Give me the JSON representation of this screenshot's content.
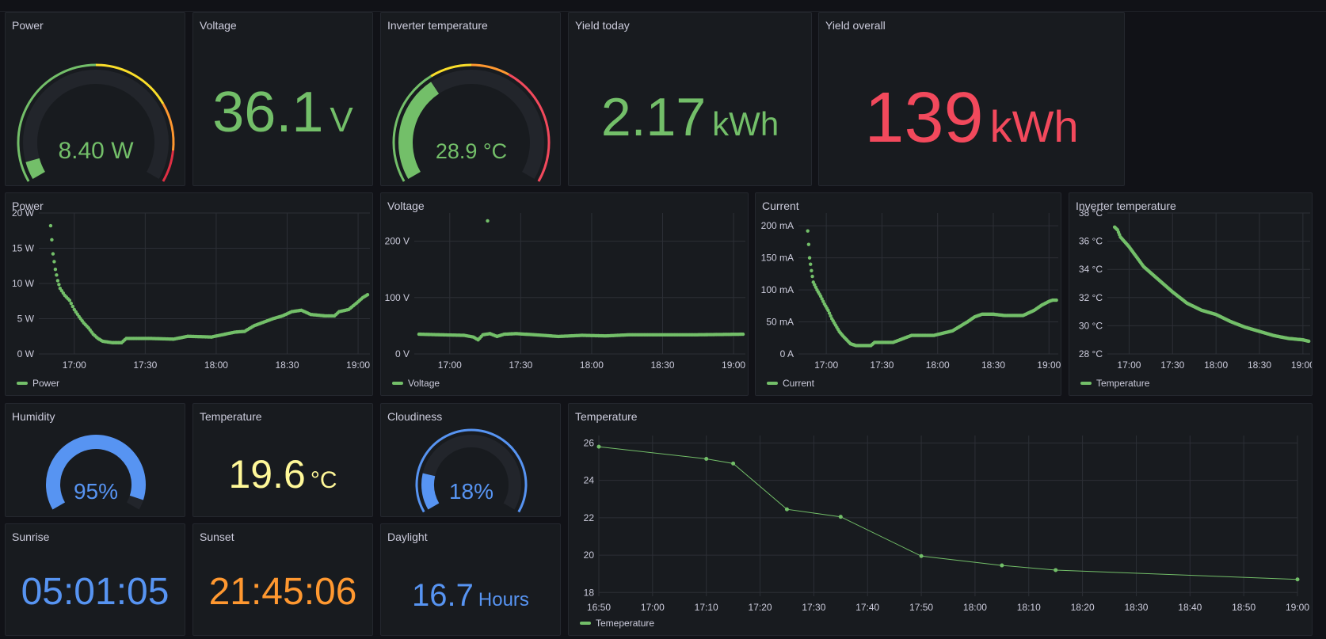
{
  "colors": {
    "green": "#73bf69",
    "yellow": "#fade2a",
    "orange": "#ff9830",
    "red": "#f2495c",
    "blue": "#5794f2",
    "lightyellow": "#fff899",
    "track": "#22252b"
  },
  "stats": {
    "power_gauge": {
      "title": "Power",
      "value": "8.40 W",
      "fraction": 0.06
    },
    "voltage": {
      "title": "Voltage",
      "value": "36.1",
      "unit": "V"
    },
    "inv_temp_gauge": {
      "title": "Inverter temperature",
      "value": "28.9 °C",
      "fraction": 0.36
    },
    "yield_today": {
      "title": "Yield today",
      "value": "2.17",
      "unit": "kWh"
    },
    "yield_overall": {
      "title": "Yield overall",
      "value": "139",
      "unit": "kWh"
    },
    "humidity": {
      "title": "Humidity",
      "value": "95%",
      "fraction": 0.95
    },
    "temperature": {
      "title": "Temperature",
      "value": "19.6",
      "unit": "°C"
    },
    "cloudiness": {
      "title": "Cloudiness",
      "value": "18%",
      "fraction": 0.18
    },
    "sunrise": {
      "title": "Sunrise",
      "value": "05:01:05"
    },
    "sunset": {
      "title": "Sunset",
      "value": "21:45:06"
    },
    "daylight": {
      "title": "Daylight",
      "value": "16.7",
      "unit": "Hours"
    }
  },
  "chart_data": [
    {
      "id": "power",
      "type": "scatter",
      "title": "Power",
      "legend": "Power",
      "color": "#73bf69",
      "xrange": [
        1005,
        1145
      ],
      "xticks": [
        1020,
        1050,
        1080,
        1110,
        1140
      ],
      "xtick_labels": [
        "17:00",
        "17:30",
        "18:00",
        "18:30",
        "19:00"
      ],
      "ylim": [
        0,
        20
      ],
      "yticks": [
        0,
        5,
        10,
        15,
        20
      ],
      "ytick_labels": [
        "0 W",
        "5 W",
        "10 W",
        "15 W",
        "20 W"
      ],
      "anchors": [
        [
          1010,
          18.2
        ],
        [
          1011,
          14.2
        ],
        [
          1012,
          12
        ],
        [
          1013,
          10.4
        ],
        [
          1014,
          9.3
        ],
        [
          1016,
          8.3
        ],
        [
          1018,
          7.6
        ],
        [
          1020,
          6.3
        ],
        [
          1022,
          5.3
        ],
        [
          1024,
          4.4
        ],
        [
          1026,
          3.7
        ],
        [
          1028,
          2.8
        ],
        [
          1030,
          2.2
        ],
        [
          1032,
          1.8
        ],
        [
          1036,
          1.6
        ],
        [
          1040,
          1.6
        ],
        [
          1042,
          2.2
        ],
        [
          1052,
          2.2
        ],
        [
          1062,
          2.1
        ],
        [
          1068,
          2.5
        ],
        [
          1078,
          2.4
        ],
        [
          1088,
          3.1
        ],
        [
          1092,
          3.2
        ],
        [
          1096,
          4
        ],
        [
          1104,
          5
        ],
        [
          1108,
          5.4
        ],
        [
          1112,
          6
        ],
        [
          1116,
          6.2
        ],
        [
          1120,
          5.6
        ],
        [
          1126,
          5.4
        ],
        [
          1130,
          5.4
        ],
        [
          1132,
          6
        ],
        [
          1136,
          6.3
        ],
        [
          1140,
          7.4
        ],
        [
          1142,
          8
        ],
        [
          1144,
          8.4
        ]
      ]
    },
    {
      "id": "voltage",
      "type": "scatter",
      "title": "Voltage",
      "legend": "Voltage",
      "color": "#73bf69",
      "xrange": [
        1005,
        1145
      ],
      "xticks": [
        1020,
        1050,
        1080,
        1110,
        1140
      ],
      "xtick_labels": [
        "17:00",
        "17:30",
        "18:00",
        "18:30",
        "19:00"
      ],
      "ylim": [
        0,
        250
      ],
      "yticks": [
        0,
        100,
        200
      ],
      "ytick_labels": [
        "0 V",
        "100 V",
        "200 V"
      ],
      "anchors": [
        [
          1007,
          35
        ],
        [
          1016,
          34
        ],
        [
          1026,
          33
        ],
        [
          1030,
          30
        ],
        [
          1032,
          25
        ],
        [
          1034,
          34
        ],
        [
          1037,
          36
        ],
        [
          1040,
          31
        ],
        [
          1043,
          35
        ],
        [
          1048,
          36
        ],
        [
          1056,
          34
        ],
        [
          1066,
          31
        ],
        [
          1076,
          33
        ],
        [
          1086,
          32
        ],
        [
          1096,
          34
        ],
        [
          1110,
          34
        ],
        [
          1124,
          34
        ],
        [
          1144,
          35
        ]
      ],
      "outliers": [
        [
          1036,
          236
        ]
      ]
    },
    {
      "id": "current",
      "type": "scatter",
      "title": "Current",
      "legend": "Current",
      "color": "#73bf69",
      "xrange": [
        1005,
        1145
      ],
      "xticks": [
        1020,
        1050,
        1080,
        1110,
        1140
      ],
      "xtick_labels": [
        "17:00",
        "17:30",
        "18:00",
        "18:30",
        "19:00"
      ],
      "ylim": [
        0,
        220
      ],
      "yticks": [
        0,
        50,
        100,
        150,
        200
      ],
      "ytick_labels": [
        "0 A",
        "50 mA",
        "100 mA",
        "150 mA",
        "200 mA"
      ],
      "anchors": [
        [
          1010,
          192
        ],
        [
          1011,
          150
        ],
        [
          1012,
          130
        ],
        [
          1013,
          112
        ],
        [
          1015,
          100
        ],
        [
          1017,
          90
        ],
        [
          1019,
          78
        ],
        [
          1021,
          68
        ],
        [
          1023,
          55
        ],
        [
          1025,
          45
        ],
        [
          1027,
          35
        ],
        [
          1029,
          28
        ],
        [
          1031,
          22
        ],
        [
          1033,
          16
        ],
        [
          1036,
          13
        ],
        [
          1044,
          13
        ],
        [
          1046,
          18
        ],
        [
          1056,
          18
        ],
        [
          1066,
          29
        ],
        [
          1078,
          29
        ],
        [
          1088,
          36
        ],
        [
          1092,
          43
        ],
        [
          1096,
          50
        ],
        [
          1100,
          58
        ],
        [
          1104,
          62
        ],
        [
          1110,
          62
        ],
        [
          1116,
          60
        ],
        [
          1120,
          60
        ],
        [
          1126,
          60
        ],
        [
          1132,
          68
        ],
        [
          1136,
          76
        ],
        [
          1140,
          82
        ],
        [
          1142,
          84
        ],
        [
          1144,
          84
        ]
      ]
    },
    {
      "id": "invtemp",
      "type": "scatter",
      "title": "Inverter temperature",
      "legend": "Temperature",
      "color": "#73bf69",
      "xrange": [
        1005,
        1145
      ],
      "xticks": [
        1020,
        1050,
        1080,
        1110,
        1140
      ],
      "xtick_labels": [
        "17:00",
        "17:30",
        "18:00",
        "18:30",
        "19:00"
      ],
      "ylim": [
        28,
        38
      ],
      "yticks": [
        28,
        30,
        32,
        34,
        36,
        38
      ],
      "ytick_labels": [
        "28 °C",
        "30 °C",
        "32 °C",
        "34 °C",
        "36 °C",
        "38 °C"
      ],
      "anchors": [
        [
          1010,
          37
        ],
        [
          1012,
          36.8
        ],
        [
          1014,
          36.3
        ],
        [
          1020,
          35.6
        ],
        [
          1030,
          34.2
        ],
        [
          1040,
          33.3
        ],
        [
          1050,
          32.4
        ],
        [
          1060,
          31.6
        ],
        [
          1070,
          31.1
        ],
        [
          1080,
          30.8
        ],
        [
          1090,
          30.3
        ],
        [
          1100,
          29.9
        ],
        [
          1110,
          29.6
        ],
        [
          1120,
          29.3
        ],
        [
          1130,
          29.1
        ],
        [
          1140,
          29
        ],
        [
          1144,
          28.9
        ]
      ]
    },
    {
      "id": "temp",
      "type": "line",
      "title": "Temperature",
      "legend": "Temeperature",
      "color": "#73bf69",
      "xrange": [
        1010,
        1140
      ],
      "xticks": [
        1010,
        1020,
        1030,
        1040,
        1050,
        1060,
        1070,
        1080,
        1090,
        1100,
        1110,
        1120,
        1130,
        1140
      ],
      "xtick_labels": [
        "16:50",
        "17:00",
        "17:10",
        "17:20",
        "17:30",
        "17:40",
        "17:50",
        "18:00",
        "18:10",
        "18:20",
        "18:30",
        "18:40",
        "18:50",
        "19:00"
      ],
      "ylim": [
        17.8,
        26.4
      ],
      "yticks": [
        18,
        20,
        22,
        24,
        26
      ],
      "ytick_labels": [
        "18",
        "20",
        "22",
        "24",
        "26"
      ],
      "points": [
        [
          1010,
          25.8
        ],
        [
          1030,
          25.15
        ],
        [
          1035,
          24.9
        ],
        [
          1045,
          22.45
        ],
        [
          1055,
          22.05
        ],
        [
          1070,
          19.95
        ],
        [
          1085,
          19.45
        ],
        [
          1095,
          19.2
        ],
        [
          1140,
          18.7
        ]
      ]
    }
  ]
}
